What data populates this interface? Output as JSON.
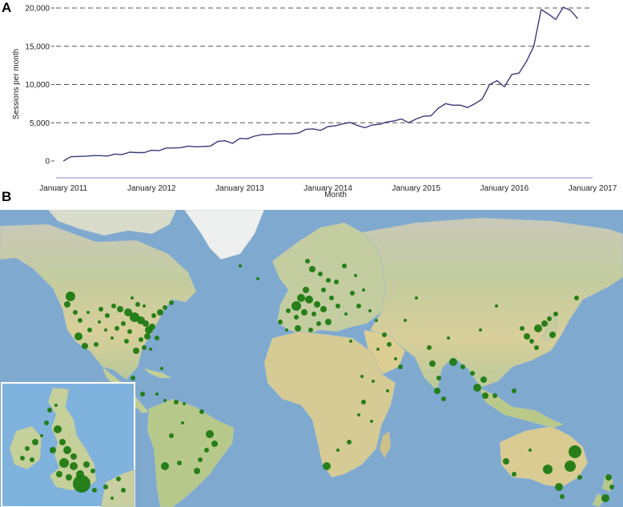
{
  "panels": {
    "a": "A",
    "b": "B"
  },
  "chart_data": {
    "type": "line",
    "xlabel": "Month",
    "ylabel": "Sessions per month",
    "xlim": [
      "2010-12",
      "2017-01"
    ],
    "ylim": [
      0,
      20000
    ],
    "x_ticks": [
      {
        "date": "2011-01",
        "label": "January 2011"
      },
      {
        "date": "2012-01",
        "label": "January 2012"
      },
      {
        "date": "2013-01",
        "label": "January 2013"
      },
      {
        "date": "2014-01",
        "label": "January 2014"
      },
      {
        "date": "2015-01",
        "label": "January 2015"
      },
      {
        "date": "2016-01",
        "label": "January 2016"
      },
      {
        "date": "2017-01",
        "label": "January 2017"
      }
    ],
    "y_ticks": [
      {
        "value": 0,
        "label": "0"
      },
      {
        "value": 5000,
        "label": "5,000"
      },
      {
        "value": 10000,
        "label": "10,000"
      },
      {
        "value": 15000,
        "label": "15,000"
      },
      {
        "value": 20000,
        "label": "20,000"
      }
    ],
    "grid": "dashed horizontal lines at 5,000 / 10,000 / 15,000 / 20,000",
    "line_color": "#3b3a7a",
    "series": [
      {
        "values": [
          {
            "x": "2011-01",
            "y": 0
          },
          {
            "x": "2011-02",
            "y": 550
          },
          {
            "x": "2011-03",
            "y": 600
          },
          {
            "x": "2011-04",
            "y": 620
          },
          {
            "x": "2011-05",
            "y": 700
          },
          {
            "x": "2011-06",
            "y": 700
          },
          {
            "x": "2011-07",
            "y": 650
          },
          {
            "x": "2011-08",
            "y": 900
          },
          {
            "x": "2011-09",
            "y": 850
          },
          {
            "x": "2011-10",
            "y": 1150
          },
          {
            "x": "2011-11",
            "y": 1100
          },
          {
            "x": "2011-12",
            "y": 1100
          },
          {
            "x": "2012-01",
            "y": 1400
          },
          {
            "x": "2012-02",
            "y": 1350
          },
          {
            "x": "2012-03",
            "y": 1700
          },
          {
            "x": "2012-04",
            "y": 1700
          },
          {
            "x": "2012-05",
            "y": 1750
          },
          {
            "x": "2012-06",
            "y": 1950
          },
          {
            "x": "2012-07",
            "y": 1850
          },
          {
            "x": "2012-08",
            "y": 1900
          },
          {
            "x": "2012-09",
            "y": 1950
          },
          {
            "x": "2012-10",
            "y": 2550
          },
          {
            "x": "2012-11",
            "y": 2650
          },
          {
            "x": "2012-12",
            "y": 2300
          },
          {
            "x": "2013-01",
            "y": 2950
          },
          {
            "x": "2013-02",
            "y": 2900
          },
          {
            "x": "2013-03",
            "y": 3250
          },
          {
            "x": "2013-04",
            "y": 3450
          },
          {
            "x": "2013-05",
            "y": 3450
          },
          {
            "x": "2013-06",
            "y": 3550
          },
          {
            "x": "2013-07",
            "y": 3550
          },
          {
            "x": "2013-08",
            "y": 3550
          },
          {
            "x": "2013-09",
            "y": 3650
          },
          {
            "x": "2013-10",
            "y": 4150
          },
          {
            "x": "2013-11",
            "y": 4200
          },
          {
            "x": "2013-12",
            "y": 4000
          },
          {
            "x": "2014-01",
            "y": 4500
          },
          {
            "x": "2014-02",
            "y": 4600
          },
          {
            "x": "2014-03",
            "y": 4850
          },
          {
            "x": "2014-04",
            "y": 5050
          },
          {
            "x": "2014-05",
            "y": 4650
          },
          {
            "x": "2014-06",
            "y": 4350
          },
          {
            "x": "2014-07",
            "y": 4700
          },
          {
            "x": "2014-08",
            "y": 4800
          },
          {
            "x": "2014-09",
            "y": 5100
          },
          {
            "x": "2014-10",
            "y": 5250
          },
          {
            "x": "2014-11",
            "y": 5500
          },
          {
            "x": "2014-12",
            "y": 5000
          },
          {
            "x": "2015-01",
            "y": 5500
          },
          {
            "x": "2015-02",
            "y": 5850
          },
          {
            "x": "2015-03",
            "y": 5900
          },
          {
            "x": "2015-04",
            "y": 6900
          },
          {
            "x": "2015-05",
            "y": 7500
          },
          {
            "x": "2015-06",
            "y": 7300
          },
          {
            "x": "2015-07",
            "y": 7300
          },
          {
            "x": "2015-08",
            "y": 7000
          },
          {
            "x": "2015-09",
            "y": 7500
          },
          {
            "x": "2015-10",
            "y": 8100
          },
          {
            "x": "2015-11",
            "y": 10000
          },
          {
            "x": "2015-12",
            "y": 10500
          },
          {
            "x": "2016-01",
            "y": 9700
          },
          {
            "x": "2016-02",
            "y": 11300
          },
          {
            "x": "2016-03",
            "y": 11500
          },
          {
            "x": "2016-04",
            "y": 13000
          },
          {
            "x": "2016-05",
            "y": 15000
          },
          {
            "x": "2016-06",
            "y": 19800
          },
          {
            "x": "2016-07",
            "y": 19200
          },
          {
            "x": "2016-08",
            "y": 18500
          },
          {
            "x": "2016-09",
            "y": 20100
          },
          {
            "x": "2016-10",
            "y": 19700
          },
          {
            "x": "2016-11",
            "y": 18600
          }
        ]
      }
    ]
  },
  "map": {
    "type": "world map with proportional green session circles",
    "marker_color": "#1f7a12",
    "inset": "British Isles (enlarged)"
  }
}
